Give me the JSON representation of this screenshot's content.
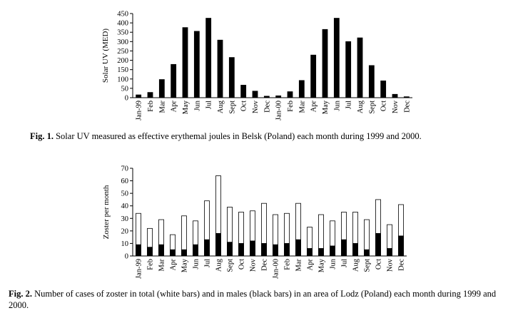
{
  "chart_data": [
    {
      "type": "bar",
      "title": "",
      "xlabel": "",
      "ylabel": "Solar UV (MED)",
      "ylim": [
        0,
        450
      ],
      "yticks": [
        0,
        50,
        100,
        150,
        200,
        250,
        300,
        350,
        400,
        450
      ],
      "categories": [
        "Jan-99",
        "Feb",
        "Mar",
        "Apr",
        "May",
        "Jun",
        "Jul",
        "Aug",
        "Sept",
        "Oct",
        "Nov",
        "Dec",
        "Jan-00",
        "Feb",
        "Mar",
        "Apr",
        "May",
        "Jun",
        "Jul",
        "Aug",
        "Sept",
        "Oct",
        "Nov",
        "Dec"
      ],
      "series": [
        {
          "name": "Solar UV",
          "color": "#000000",
          "values": [
            15,
            28,
            97,
            178,
            375,
            355,
            425,
            308,
            215,
            67,
            35,
            8,
            10,
            32,
            92,
            228,
            365,
            425,
            300,
            320,
            172,
            90,
            18,
            5
          ]
        }
      ]
    },
    {
      "type": "bar",
      "title": "",
      "xlabel": "",
      "ylabel": "Zoster per month",
      "ylim": [
        0,
        70
      ],
      "yticks": [
        0,
        10,
        20,
        30,
        40,
        50,
        60,
        70
      ],
      "categories": [
        "Jan-99",
        "Feb",
        "Mar",
        "Apr",
        "May",
        "Jun",
        "Jul",
        "Aug",
        "Sept",
        "Oct",
        "Nov",
        "Dec",
        "Jan-00",
        "Feb",
        "Mar",
        "Apr",
        "May",
        "Jun",
        "Jul",
        "Aug",
        "Sept",
        "Oct",
        "Nov",
        "Dec"
      ],
      "series": [
        {
          "name": "Total",
          "color": "#ffffff",
          "values": [
            34,
            22,
            29,
            17,
            32,
            28,
            44,
            64,
            39,
            35,
            36,
            42,
            33,
            34,
            42,
            23,
            33,
            28,
            35,
            35,
            29,
            45,
            25,
            41
          ]
        },
        {
          "name": "Males",
          "color": "#000000",
          "values": [
            9,
            7,
            9,
            5,
            5,
            9,
            13,
            18,
            11,
            10,
            12,
            10,
            9,
            10,
            13,
            6,
            6,
            8,
            13,
            10,
            5,
            18,
            6,
            16
          ]
        }
      ]
    }
  ],
  "captions": {
    "fig1": {
      "label": "Fig. 1.",
      "text": " Solar UV measured as effective erythemal joules in Belsk (Poland) each month during 1999 and 2000."
    },
    "fig2": {
      "label": "Fig. 2.",
      "text": " Number of cases of zoster in total (white bars) and in males (black bars) in an area of Lodz (Poland) each month during 1999 and 2000."
    }
  }
}
